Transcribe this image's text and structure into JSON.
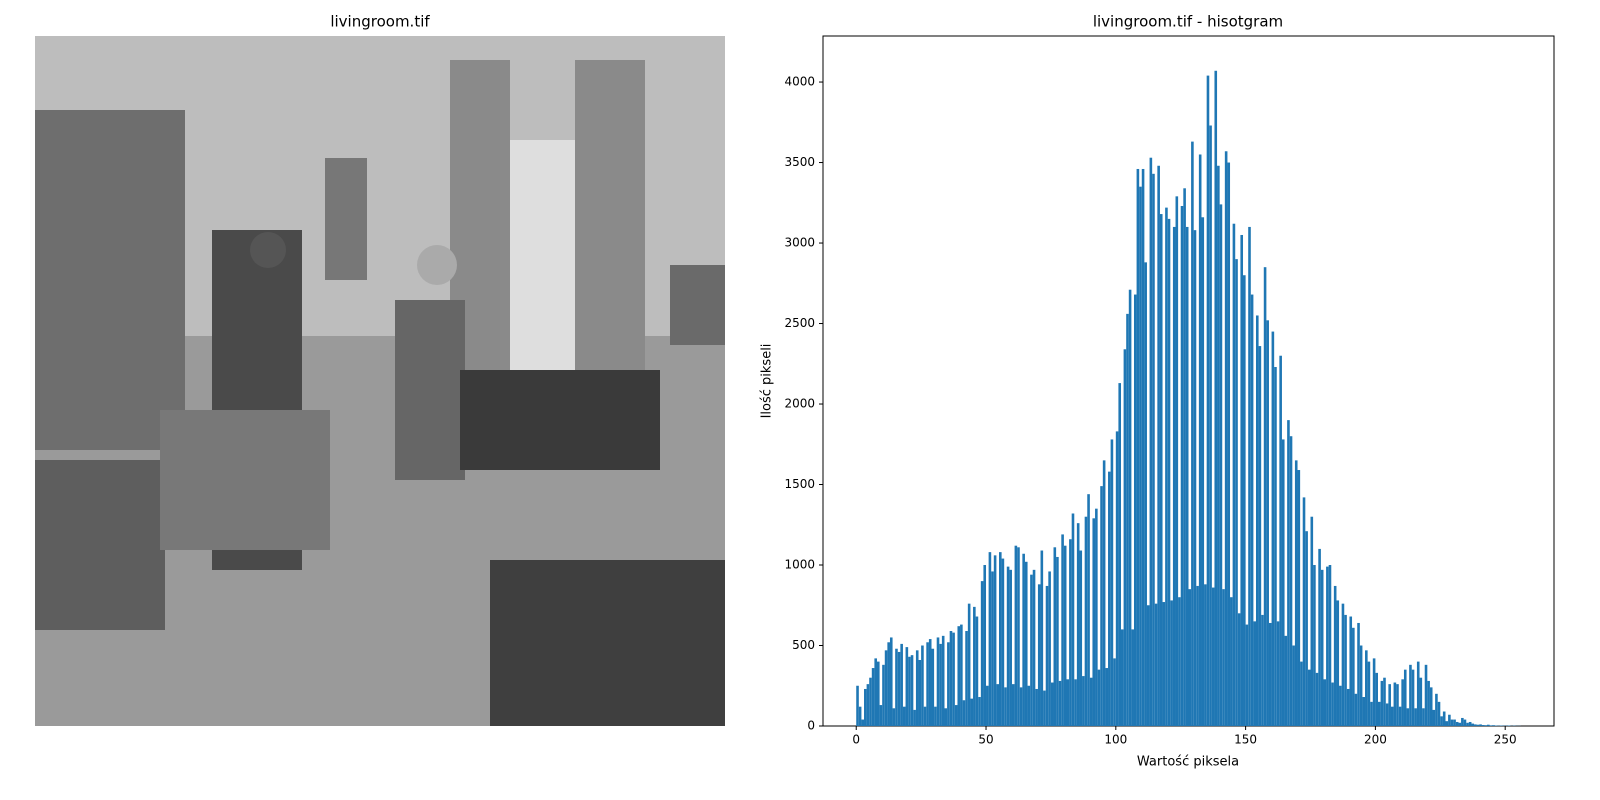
{
  "chart_data": [
    {
      "type": "image",
      "title": "livingroom.tif"
    },
    {
      "type": "histogram",
      "title": "livingroom.tif - hisotgram",
      "xlabel": "Wartość piksela",
      "ylabel": "Ilość pikseli",
      "color": "#1f77b4",
      "bins": [
        0,
        1,
        2,
        3,
        4,
        5,
        6,
        7,
        8,
        9,
        10,
        11,
        12,
        13,
        14,
        15,
        16,
        17,
        18,
        19,
        20,
        21,
        22,
        23,
        24,
        25,
        26,
        27,
        28,
        29,
        30,
        31,
        32,
        33,
        34,
        35,
        36,
        37,
        38,
        39,
        40,
        41,
        42,
        43,
        44,
        45,
        46,
        47,
        48,
        49,
        50,
        51,
        52,
        53,
        54,
        55,
        56,
        57,
        58,
        59,
        60,
        61,
        62,
        63,
        64,
        65,
        66,
        67,
        68,
        69,
        70,
        71,
        72,
        73,
        74,
        75,
        76,
        77,
        78,
        79,
        80,
        81,
        82,
        83,
        84,
        85,
        86,
        87,
        88,
        89,
        90,
        91,
        92,
        93,
        94,
        95,
        96,
        97,
        98,
        99,
        100,
        101,
        102,
        103,
        104,
        105,
        106,
        107,
        108,
        109,
        110,
        111,
        112,
        113,
        114,
        115,
        116,
        117,
        118,
        119,
        120,
        121,
        122,
        123,
        124,
        125,
        126,
        127,
        128,
        129,
        130,
        131,
        132,
        133,
        134,
        135,
        136,
        137,
        138,
        139,
        140,
        141,
        142,
        143,
        144,
        145,
        146,
        147,
        148,
        149,
        150,
        151,
        152,
        153,
        154,
        155,
        156,
        157,
        158,
        159,
        160,
        161,
        162,
        163,
        164,
        165,
        166,
        167,
        168,
        169,
        170,
        171,
        172,
        173,
        174,
        175,
        176,
        177,
        178,
        179,
        180,
        181,
        182,
        183,
        184,
        185,
        186,
        187,
        188,
        189,
        190,
        191,
        192,
        193,
        194,
        195,
        196,
        197,
        198,
        199,
        200,
        201,
        202,
        203,
        204,
        205,
        206,
        207,
        208,
        209,
        210,
        211,
        212,
        213,
        214,
        215,
        216,
        217,
        218,
        219,
        220,
        221,
        222,
        223,
        224,
        225,
        226,
        227,
        228,
        229,
        230,
        231,
        232,
        233,
        234,
        235,
        236,
        237,
        238,
        239,
        240,
        241,
        242,
        243,
        244,
        245,
        246,
        247,
        248,
        249,
        250,
        251,
        252,
        253,
        254,
        255,
        256
      ],
      "values": [
        250,
        120,
        40,
        230,
        260,
        300,
        360,
        420,
        400,
        130,
        380,
        470,
        520,
        550,
        110,
        480,
        460,
        510,
        120,
        490,
        430,
        440,
        100,
        470,
        410,
        500,
        120,
        520,
        540,
        480,
        120,
        550,
        510,
        560,
        110,
        520,
        590,
        580,
        130,
        620,
        630,
        160,
        590,
        760,
        170,
        740,
        680,
        180,
        900,
        1000,
        250,
        1080,
        960,
        1060,
        260,
        1080,
        1040,
        240,
        990,
        970,
        260,
        1120,
        1110,
        240,
        1070,
        1020,
        250,
        940,
        970,
        230,
        880,
        1090,
        220,
        870,
        960,
        270,
        1110,
        1050,
        280,
        1190,
        1120,
        290,
        1160,
        1320,
        290,
        1260,
        1090,
        310,
        1300,
        1440,
        300,
        1290,
        1350,
        350,
        1490,
        1650,
        360,
        1580,
        1780,
        420,
        1830,
        2130,
        600,
        2340,
        2560,
        2710,
        600,
        2680,
        3460,
        3350,
        3460,
        2880,
        750,
        3530,
        3430,
        760,
        3480,
        3180,
        770,
        3220,
        3150,
        780,
        3100,
        3290,
        800,
        3230,
        3340,
        3100,
        850,
        3630,
        3080,
        870,
        3550,
        3160,
        880,
        4040,
        3730,
        860,
        4070,
        3480,
        3240,
        850,
        3570,
        3500,
        800,
        3120,
        2900,
        700,
        3050,
        2800,
        630,
        3100,
        2680,
        650,
        2550,
        2360,
        690,
        2850,
        2520,
        640,
        2450,
        2230,
        650,
        2300,
        1780,
        560,
        1900,
        1800,
        500,
        1650,
        1590,
        400,
        1420,
        1210,
        350,
        1300,
        1000,
        330,
        1100,
        970,
        290,
        990,
        1000,
        270,
        870,
        780,
        250,
        760,
        690,
        230,
        680,
        610,
        200,
        640,
        500,
        180,
        470,
        400,
        150,
        420,
        330,
        150,
        280,
        300,
        140,
        260,
        120,
        270,
        260,
        120,
        290,
        350,
        110,
        380,
        350,
        110,
        400,
        300,
        110,
        380,
        280,
        240,
        100,
        200,
        150,
        60,
        90,
        30,
        70,
        40,
        40,
        25,
        20,
        50,
        40,
        20,
        25,
        15,
        10,
        8,
        10,
        6,
        5,
        8,
        4,
        5,
        3,
        2,
        3,
        2,
        2,
        3,
        1,
        2,
        1,
        1
      ],
      "xlim": [
        -12.8,
        268.8
      ],
      "ylim": [
        0,
        4286
      ],
      "xticks": [
        0,
        50,
        100,
        150,
        200,
        250
      ],
      "yticks": [
        0,
        500,
        1000,
        1500,
        2000,
        2500,
        3000,
        3500,
        4000
      ]
    }
  ]
}
